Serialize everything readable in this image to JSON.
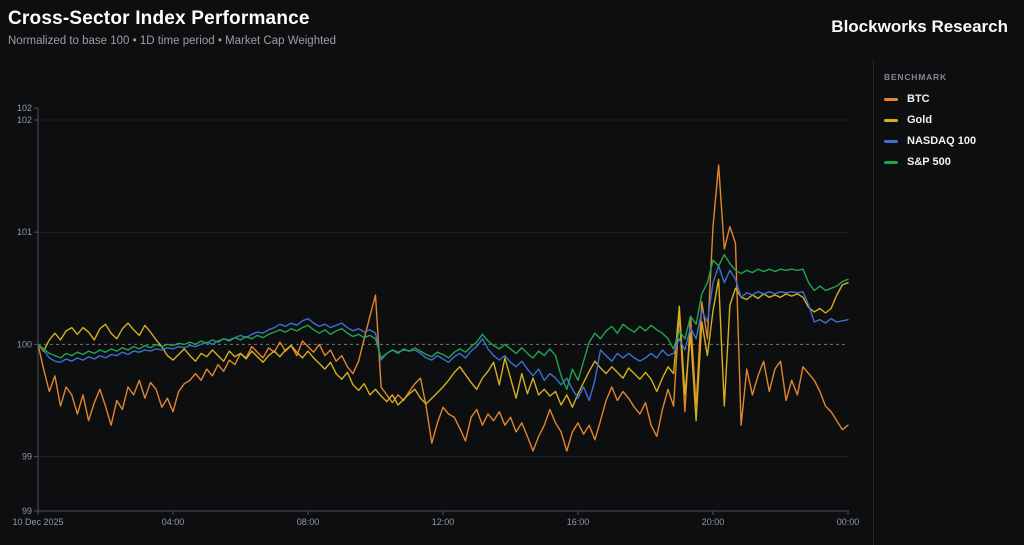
{
  "header": {
    "title": "Cross-Sector Index Performance",
    "subtitle": "Normalized to base 100 • 1D time period • Market Cap Weighted",
    "brand": "Blockworks Research"
  },
  "legend": {
    "heading": "BENCHMARK",
    "items": [
      {
        "label": "BTC",
        "color": "#E0862F"
      },
      {
        "label": "Gold",
        "color": "#D3B01E"
      },
      {
        "label": "NASDAQ 100",
        "color": "#3D6FD1"
      },
      {
        "label": "S&P 500",
        "color": "#22A44E"
      }
    ]
  },
  "chart_data": {
    "type": "line",
    "title": "Cross-Sector Index Performance",
    "xlabel": "",
    "ylabel": "",
    "x_unit": "hours (10 Dec 2025, 00:00 - 24:00)",
    "x_range": [
      0,
      24
    ],
    "y_range": [
      98.515,
      102.107
    ],
    "baseline": 100,
    "grid": "horizontal-faint, dashed line at 100",
    "legend_position": "right",
    "x_ticks": [
      {
        "hour": 0,
        "label": "10 Dec 2025"
      },
      {
        "hour": 4,
        "label": "04:00"
      },
      {
        "hour": 8,
        "label": "08:00"
      },
      {
        "hour": 12,
        "label": "12:00"
      },
      {
        "hour": 16,
        "label": "16:00"
      },
      {
        "hour": 20,
        "label": "20:00"
      },
      {
        "hour": 24,
        "label": "00:00"
      }
    ],
    "y_ticks": [
      {
        "value": 102.107,
        "label": "102",
        "grid": "none"
      },
      {
        "value": 102,
        "label": "102",
        "grid": "faint"
      },
      {
        "value": 101,
        "label": "101",
        "grid": "faint"
      },
      {
        "value": 100,
        "label": "100",
        "grid": "dashed"
      },
      {
        "value": 99,
        "label": "99",
        "grid": "faint"
      },
      {
        "value": 98.515,
        "label": "99",
        "grid": "none"
      }
    ],
    "series": [
      {
        "name": "BTC",
        "color": "#E0862F",
        "values": [
          100.0,
          99.78,
          99.58,
          99.72,
          99.45,
          99.62,
          99.55,
          99.38,
          99.55,
          99.32,
          99.48,
          99.6,
          99.45,
          99.28,
          99.5,
          99.42,
          99.62,
          99.55,
          99.68,
          99.52,
          99.66,
          99.6,
          99.44,
          99.52,
          99.4,
          99.58,
          99.65,
          99.68,
          99.74,
          99.68,
          99.78,
          99.72,
          99.82,
          99.76,
          99.86,
          99.82,
          99.92,
          99.88,
          99.98,
          99.93,
          99.88,
          99.97,
          99.93,
          100.02,
          99.94,
          99.99,
          99.9,
          100.03,
          99.98,
          99.93,
          100.0,
          99.9,
          99.95,
          99.85,
          99.9,
          99.8,
          99.74,
          99.85,
          100.05,
          100.25,
          100.44,
          99.62,
          99.55,
          99.48,
          99.55,
          99.5,
          99.58,
          99.65,
          99.7,
          99.45,
          99.12,
          99.3,
          99.44,
          99.38,
          99.35,
          99.25,
          99.14,
          99.35,
          99.42,
          99.28,
          99.38,
          99.32,
          99.4,
          99.28,
          99.35,
          99.22,
          99.3,
          99.18,
          99.05,
          99.18,
          99.28,
          99.42,
          99.3,
          99.22,
          99.05,
          99.22,
          99.3,
          99.2,
          99.28,
          99.15,
          99.32,
          99.5,
          99.62,
          99.5,
          99.58,
          99.52,
          99.44,
          99.38,
          99.48,
          99.28,
          99.18,
          99.42,
          99.6,
          99.45,
          100.28,
          99.4,
          100.25,
          99.45,
          100.38,
          100.05,
          101.05,
          101.6,
          100.85,
          101.05,
          100.9,
          99.28,
          99.78,
          99.55,
          99.72,
          99.85,
          99.58,
          99.78,
          99.85,
          99.5,
          99.68,
          99.55,
          99.8,
          99.74,
          99.68,
          99.58,
          99.45,
          99.4,
          99.32,
          99.24,
          99.28
        ]
      },
      {
        "name": "Gold",
        "color": "#D3B01E",
        "values": [
          100.0,
          99.94,
          100.04,
          100.1,
          100.04,
          100.12,
          100.15,
          100.09,
          100.15,
          100.11,
          100.04,
          100.14,
          100.18,
          100.1,
          100.05,
          100.14,
          100.19,
          100.13,
          100.08,
          100.17,
          100.11,
          100.04,
          99.98,
          99.9,
          99.86,
          99.91,
          99.96,
          99.9,
          99.85,
          99.92,
          99.89,
          99.95,
          99.9,
          99.85,
          99.94,
          99.89,
          99.92,
          99.87,
          99.94,
          99.89,
          99.84,
          99.9,
          99.94,
          99.89,
          99.95,
          99.99,
          99.93,
          99.88,
          99.94,
          99.88,
          99.83,
          99.78,
          99.84,
          99.74,
          99.69,
          99.75,
          99.64,
          99.59,
          99.65,
          99.55,
          99.6,
          99.54,
          99.49,
          99.55,
          99.46,
          99.51,
          99.56,
          99.6,
          99.52,
          99.47,
          99.52,
          99.57,
          99.62,
          99.68,
          99.75,
          99.8,
          99.73,
          99.66,
          99.6,
          99.7,
          99.76,
          99.84,
          99.64,
          99.88,
          99.7,
          99.52,
          99.74,
          99.56,
          99.7,
          99.55,
          99.6,
          99.54,
          99.58,
          99.46,
          99.55,
          99.44,
          99.56,
          99.66,
          99.76,
          99.85,
          99.79,
          99.74,
          99.8,
          99.75,
          99.7,
          99.79,
          99.74,
          99.69,
          99.75,
          99.69,
          99.58,
          99.7,
          99.8,
          99.74,
          100.34,
          99.55,
          100.1,
          99.32,
          100.2,
          99.9,
          100.3,
          100.58,
          99.45,
          100.35,
          100.5,
          100.42,
          100.4,
          100.44,
          100.41,
          100.45,
          100.42,
          100.44,
          100.42,
          100.45,
          100.43,
          100.45,
          100.42,
          100.33,
          100.29,
          100.32,
          100.28,
          100.32,
          100.44,
          100.53,
          100.55
        ]
      },
      {
        "name": "NASDAQ 100",
        "color": "#3D6FD1",
        "values": [
          100.0,
          99.95,
          99.88,
          99.85,
          99.84,
          99.87,
          99.85,
          99.88,
          99.86,
          99.89,
          99.87,
          99.9,
          99.88,
          99.91,
          99.9,
          99.93,
          99.91,
          99.94,
          99.93,
          99.95,
          99.94,
          99.96,
          99.95,
          99.97,
          99.96,
          99.98,
          99.97,
          99.99,
          99.98,
          100.0,
          100.02,
          100.0,
          100.03,
          100.05,
          100.04,
          100.06,
          100.08,
          100.06,
          100.09,
          100.11,
          100.1,
          100.13,
          100.15,
          100.18,
          100.16,
          100.19,
          100.17,
          100.21,
          100.23,
          100.19,
          100.16,
          100.18,
          100.15,
          100.17,
          100.19,
          100.15,
          100.12,
          100.14,
          100.11,
          100.13,
          100.1,
          99.86,
          99.92,
          99.95,
          99.93,
          99.95,
          99.94,
          99.95,
          99.92,
          99.88,
          99.86,
          99.9,
          99.87,
          99.84,
          99.89,
          99.92,
          99.88,
          99.94,
          99.98,
          100.05,
          99.96,
          99.9,
          99.86,
          99.9,
          99.84,
          99.8,
          99.85,
          99.78,
          99.72,
          99.78,
          99.68,
          99.74,
          99.7,
          99.64,
          99.7,
          99.6,
          99.52,
          99.62,
          99.5,
          99.68,
          99.95,
          99.9,
          99.85,
          99.92,
          99.88,
          99.92,
          99.88,
          99.85,
          99.88,
          99.92,
          99.88,
          99.95,
          99.9,
          99.92,
          100.05,
          99.95,
          100.15,
          100.05,
          100.3,
          100.2,
          100.55,
          100.7,
          100.55,
          100.66,
          100.58,
          100.42,
          100.46,
          100.44,
          100.47,
          100.45,
          100.47,
          100.45,
          100.47,
          100.46,
          100.47,
          100.46,
          100.47,
          100.35,
          100.2,
          100.22,
          100.19,
          100.23,
          100.2,
          100.21,
          100.22
        ]
      },
      {
        "name": "S&P 500",
        "color": "#22A44E",
        "values": [
          100.0,
          99.96,
          99.92,
          99.9,
          99.88,
          99.92,
          99.9,
          99.93,
          99.91,
          99.94,
          99.92,
          99.95,
          99.93,
          99.96,
          99.94,
          99.97,
          99.95,
          99.98,
          99.96,
          99.99,
          99.97,
          100.0,
          99.98,
          100.0,
          99.99,
          100.01,
          100.0,
          100.02,
          100.0,
          100.03,
          100.01,
          100.04,
          100.02,
          100.05,
          100.03,
          100.06,
          100.04,
          100.07,
          100.05,
          100.08,
          100.06,
          100.09,
          100.11,
          100.13,
          100.11,
          100.14,
          100.12,
          100.15,
          100.17,
          100.13,
          100.1,
          100.13,
          100.09,
          100.12,
          100.14,
          100.1,
          100.07,
          100.09,
          100.06,
          100.08,
          100.05,
          99.88,
          99.92,
          99.95,
          99.92,
          99.96,
          99.94,
          99.97,
          99.94,
          99.91,
          99.89,
          99.93,
          99.91,
          99.88,
          99.93,
          99.96,
          99.93,
          99.98,
          100.02,
          100.09,
          100.03,
          99.99,
          99.96,
          100.0,
          99.96,
          99.92,
          99.97,
          99.92,
          99.88,
          99.94,
          99.9,
          99.96,
          99.9,
          99.72,
          99.6,
          99.78,
          99.68,
          99.85,
          100.02,
          100.1,
          100.05,
          100.12,
          100.16,
          100.1,
          100.18,
          100.14,
          100.11,
          100.16,
          100.12,
          100.17,
          100.13,
          100.1,
          100.05,
          99.96,
          100.12,
          100.05,
          100.25,
          100.18,
          100.45,
          100.55,
          100.75,
          100.7,
          100.8,
          100.72,
          100.66,
          100.63,
          100.66,
          100.64,
          100.67,
          100.65,
          100.67,
          100.65,
          100.67,
          100.66,
          100.67,
          100.66,
          100.67,
          100.55,
          100.48,
          100.52,
          100.48,
          100.5,
          100.52,
          100.56,
          100.58
        ]
      }
    ],
    "style": {
      "background": "#0d0e10",
      "axis_color": "#4B525B",
      "tick_label_color": "#939AA2",
      "grid_faint_color": "#202328",
      "baseline_dash_color": "#83888D"
    }
  }
}
